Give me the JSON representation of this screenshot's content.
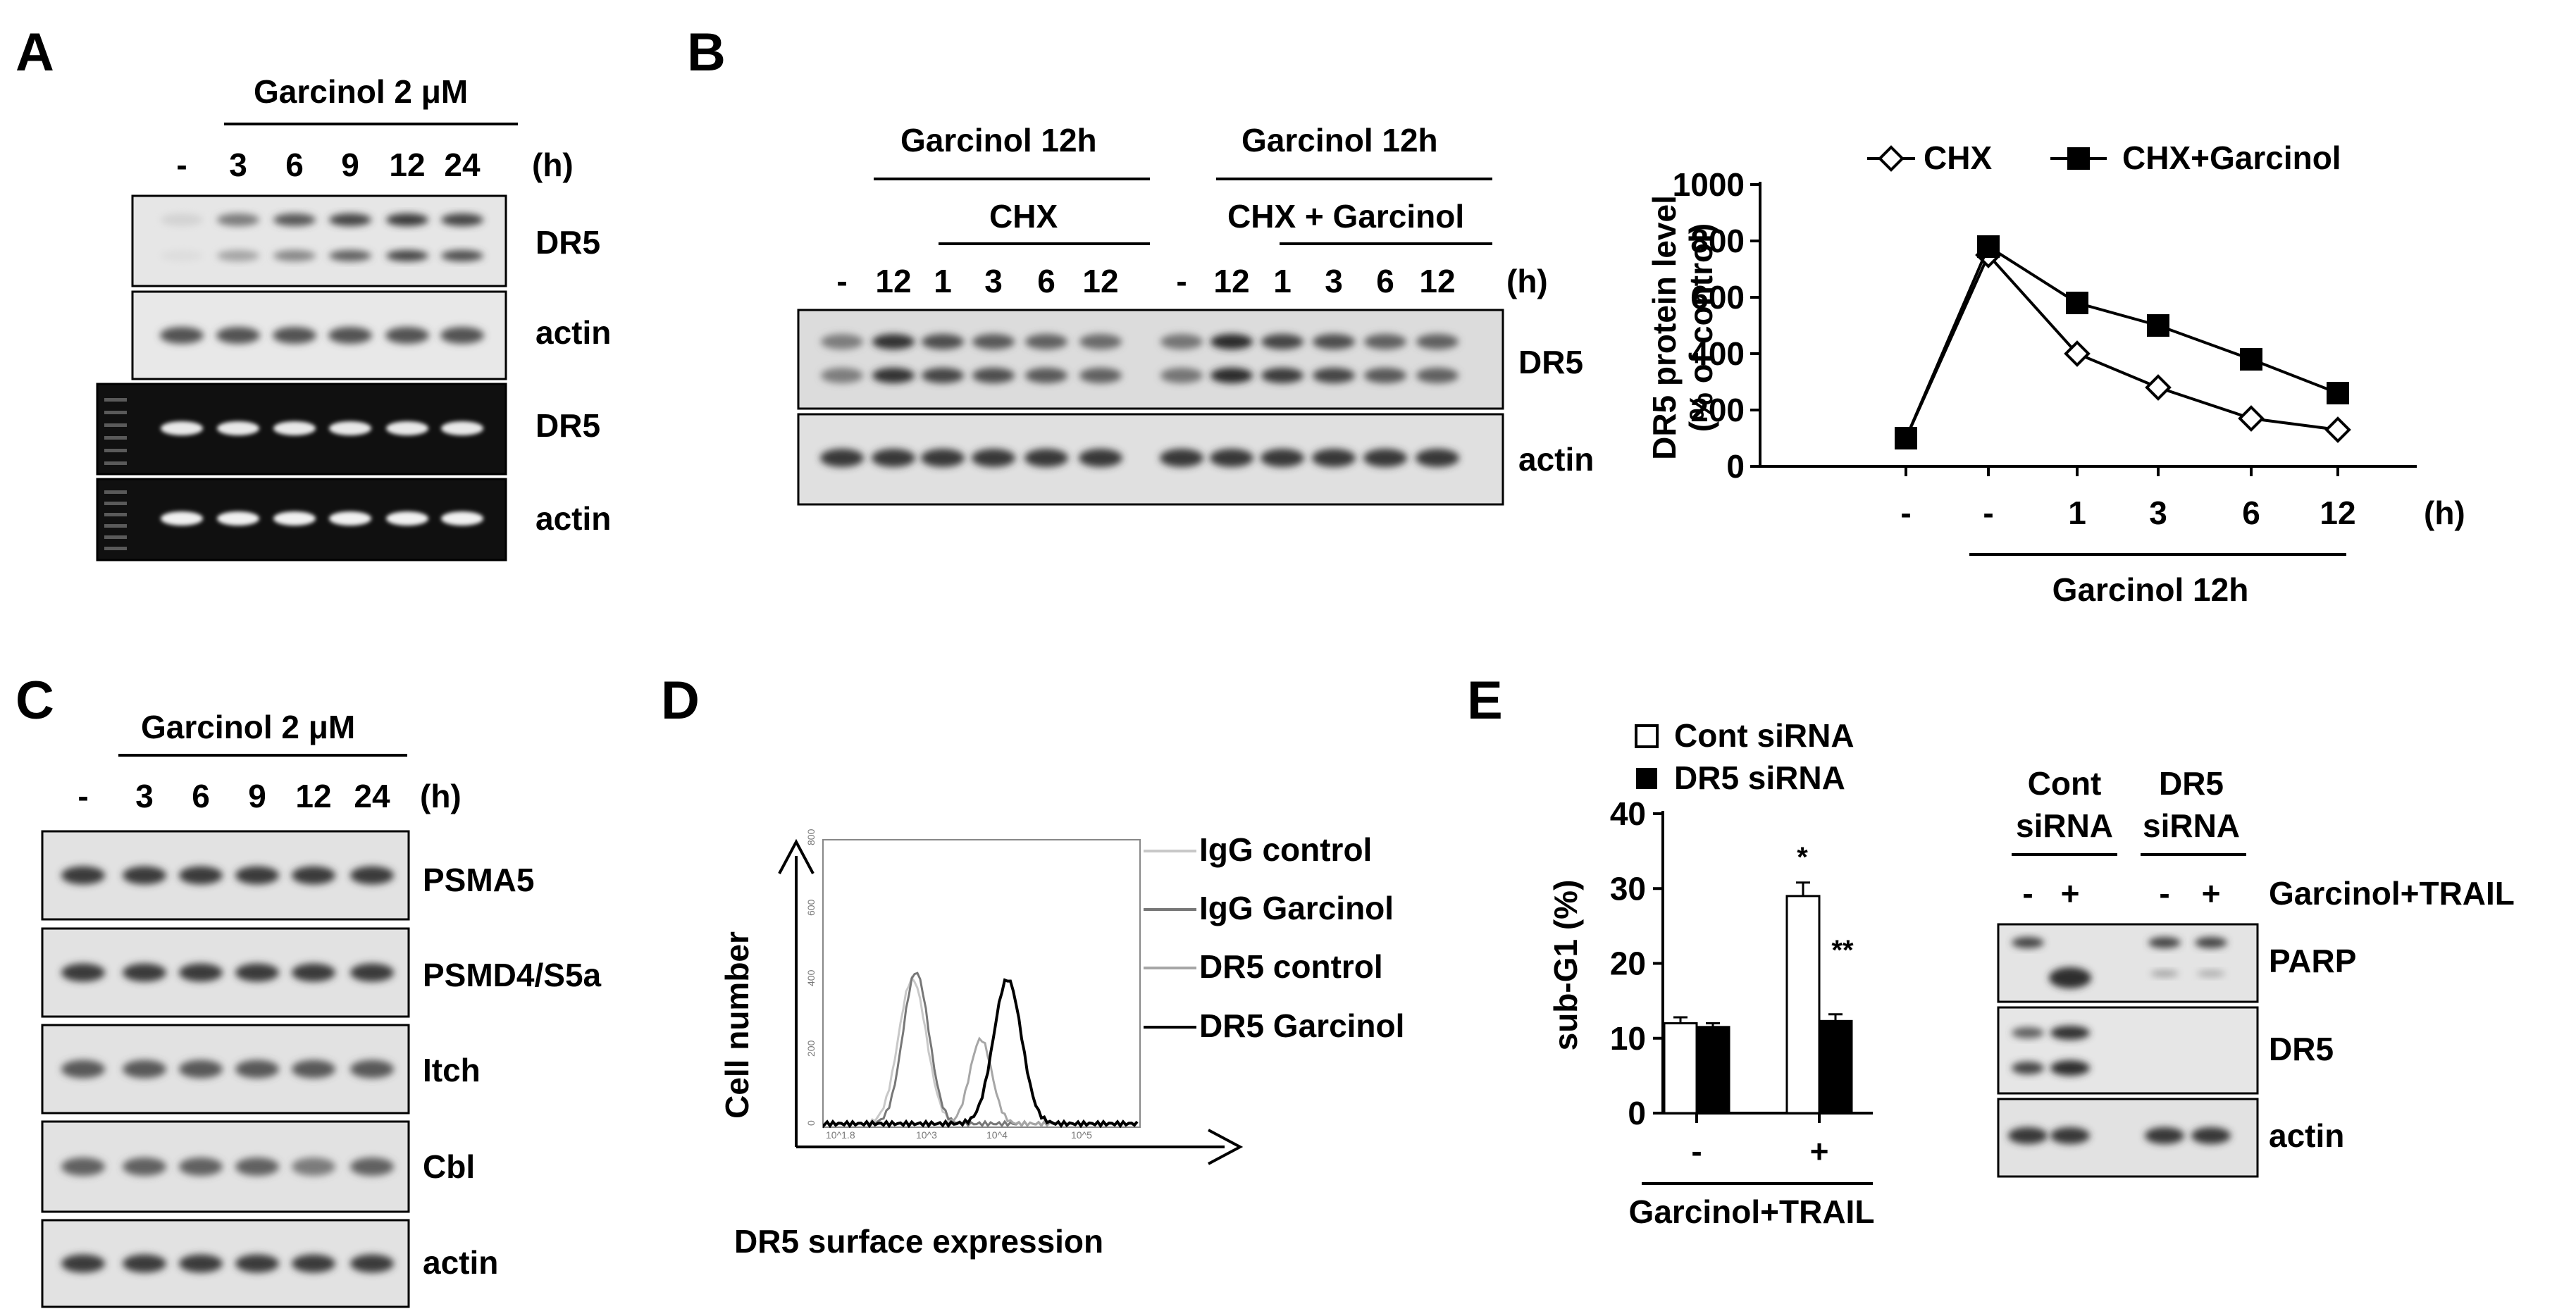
{
  "panels": {
    "A": {
      "label": "A",
      "treatment": "Garcinol 2 μM",
      "lanes": [
        "-",
        "3",
        "6",
        "9",
        "12",
        "24"
      ],
      "unit": "(h)",
      "rows": [
        "DR5",
        "actin",
        "DR5",
        "actin"
      ]
    },
    "B": {
      "label": "B",
      "group1": "Garcinol 12h",
      "group2": "Garcinol 12h",
      "chx": "CHX",
      "chx_garcinol": "CHX + Garcinol",
      "lanes": [
        "-",
        "12",
        "1",
        "3",
        "6",
        "12",
        "-",
        "12",
        "1",
        "3",
        "6",
        "12"
      ],
      "unit": "(h)",
      "rows": [
        "DR5",
        "actin"
      ]
    },
    "C": {
      "label": "C",
      "treatment": "Garcinol 2 μM",
      "lanes": [
        "-",
        "3",
        "6",
        "9",
        "12",
        "24"
      ],
      "unit": "(h)",
      "rows": [
        "PSMA5",
        "PSMD4/S5a",
        "Itch",
        "Cbl",
        "actin"
      ]
    },
    "D": {
      "label": "D",
      "xlabel": "DR5 surface expression",
      "ylabel": "Cell number",
      "xticks": [
        "10^1.8",
        "10^3",
        "10^4",
        "10^5"
      ],
      "yticks": [
        "0",
        "200",
        "400",
        "600",
        "800"
      ],
      "legend": [
        "IgG control",
        "IgG Garcinol",
        "DR5 control",
        "DR5 Garcinol"
      ],
      "colors": [
        "#c8c8c8",
        "#777777",
        "#a6a6a6",
        "#000000"
      ]
    },
    "E": {
      "label": "E",
      "legend": [
        "Cont siRNA",
        "DR5 siRNA"
      ],
      "ylabel": "sub-G1 (%)",
      "xgroups": [
        "-",
        "+"
      ],
      "xlabel": "Garcinol+TRAIL",
      "sig": [
        "*",
        "**"
      ],
      "blot_groups": [
        "Cont",
        "siRNA",
        "DR5",
        "siRNA"
      ],
      "blot_lanes": [
        "-",
        "+",
        "-",
        "+"
      ],
      "blot_treatment": "Garcinol+TRAIL",
      "blot_rows": [
        "PARP",
        "DR5",
        "actin"
      ]
    }
  },
  "chart_data": [
    {
      "type": "line",
      "panel": "B",
      "ylabel": "DR5  protein level\n(% of control)",
      "x": [
        "-",
        "-",
        "1",
        "3",
        "6",
        "12"
      ],
      "x_unit": "(h)",
      "x_group_label": "Garcinol 12h",
      "ylim": [
        0,
        1000
      ],
      "yticks": [
        0,
        200,
        400,
        600,
        800,
        1000
      ],
      "series": [
        {
          "name": "CHX",
          "marker": "open-diamond",
          "values": [
            100,
            750,
            400,
            280,
            170,
            130
          ]
        },
        {
          "name": "CHX+Garcinol",
          "marker": "filled-square",
          "values": [
            100,
            780,
            580,
            500,
            380,
            260
          ]
        }
      ],
      "legend_position": "top"
    },
    {
      "type": "bar",
      "panel": "E",
      "categories": [
        "-",
        "+"
      ],
      "xlabel": "Garcinol+TRAIL",
      "ylabel": "sub-G1 (%)",
      "ylim": [
        0,
        40
      ],
      "yticks": [
        0,
        10,
        20,
        30,
        40
      ],
      "series": [
        {
          "name": "Cont siRNA",
          "fill": "#ffffff",
          "values": [
            12,
            29
          ],
          "errors": [
            0.8,
            1.8
          ]
        },
        {
          "name": "DR5 siRNA",
          "fill": "#000000",
          "values": [
            11.5,
            12.3
          ],
          "errors": [
            0.5,
            0.9
          ]
        }
      ],
      "annotations": [
        "*",
        "**"
      ],
      "legend_position": "top-left"
    }
  ]
}
